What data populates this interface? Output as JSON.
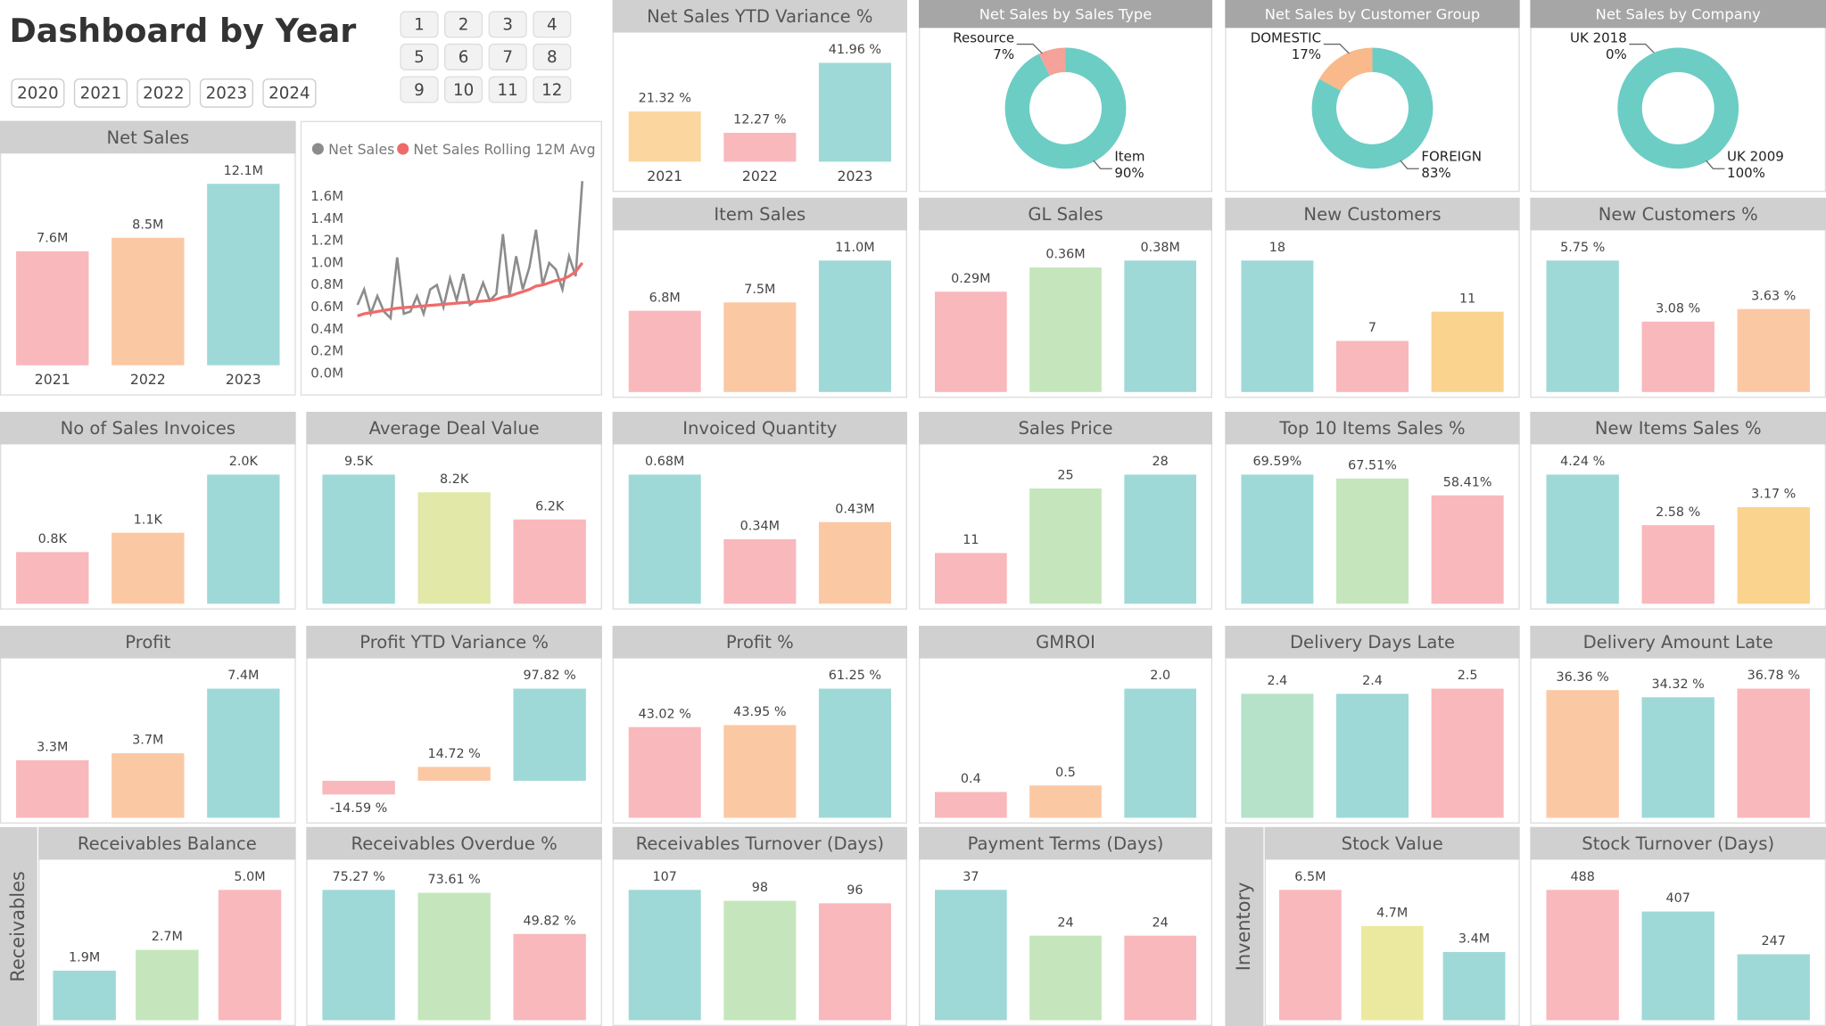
{
  "header": {
    "title": "Dashboard by Year",
    "years": [
      "2020",
      "2021",
      "2022",
      "2023",
      "2024"
    ],
    "months": [
      1,
      2,
      3,
      4,
      5,
      6,
      7,
      8,
      9,
      10,
      11,
      12
    ],
    "side_labels": [
      "Receivables",
      "Inventory"
    ]
  },
  "chart_data": [
    {
      "type": "bar",
      "title": "Net Sales YTD Variance %",
      "categories": [
        "2021",
        "2022",
        "2023"
      ],
      "values": [
        21.32,
        12.27,
        41.96
      ],
      "value_labels": [
        "21.32 %",
        "12.27 %",
        "41.96 %"
      ],
      "colors": [
        "#fbd79f",
        "#f9b8bc",
        "#9ed9d8"
      ]
    },
    {
      "type": "donut",
      "title": "Net Sales by Sales Type",
      "categories": [
        "Resource",
        "Item"
      ],
      "values": [
        7,
        90
      ],
      "value_labels": [
        "7%",
        "90%"
      ],
      "colors": [
        "#f4a29a",
        "#6ccdc4"
      ]
    },
    {
      "type": "donut",
      "title": "Net Sales by Customer Group",
      "categories": [
        "DOMESTIC",
        "FOREIGN"
      ],
      "values": [
        17,
        83
      ],
      "value_labels": [
        "17%",
        "83%"
      ],
      "colors": [
        "#f9b98a",
        "#6ccdc4"
      ]
    },
    {
      "type": "donut",
      "title": "Net Sales by Company",
      "categories": [
        "UK 2018",
        "UK 2009"
      ],
      "values": [
        0,
        100
      ],
      "value_labels": [
        "0%",
        "100%"
      ],
      "colors": [
        "#f4a29a",
        "#6ccdc4"
      ]
    },
    {
      "type": "bar",
      "title": "Net Sales",
      "categories": [
        "2021",
        "2022",
        "2023"
      ],
      "values": [
        7600000,
        8500000,
        12100000
      ],
      "value_labels": [
        "7.6M",
        "8.5M",
        "12.1M"
      ],
      "colors": [
        "#f9b8bc",
        "#fbc8a4",
        "#9ed9d8"
      ]
    },
    {
      "type": "line",
      "series": [
        {
          "name": "Net Sales",
          "color": "#8c8c8c",
          "values": [
            620000,
            760000,
            540000,
            700000,
            560000,
            500000,
            1050000,
            540000,
            560000,
            700000,
            540000,
            760000,
            800000,
            600000,
            860000,
            660000,
            900000,
            620000,
            660000,
            820000,
            660000,
            720000,
            1260000,
            700000,
            1060000,
            760000,
            960000,
            1300000,
            800000,
            1000000,
            940000,
            760000,
            1060000,
            880000,
            1740000
          ]
        },
        {
          "name": "Net Sales Rolling 12M Avg",
          "color": "#ef6b6b",
          "values": [
            520000,
            540000,
            550000,
            560000,
            570000,
            580000,
            590000,
            595000,
            600000,
            605000,
            610000,
            615000,
            620000,
            625000,
            630000,
            635000,
            640000,
            645000,
            650000,
            655000,
            660000,
            670000,
            690000,
            700000,
            720000,
            740000,
            760000,
            790000,
            800000,
            820000,
            840000,
            850000,
            880000,
            920000,
            1000000
          ]
        }
      ],
      "ylim": [
        0,
        1800000
      ],
      "yticks": [
        {
          "value": 0,
          "label": "0.0M"
        },
        {
          "value": 200000,
          "label": "0.2M"
        },
        {
          "value": 400000,
          "label": "0.4M"
        },
        {
          "value": 600000,
          "label": "0.6M"
        },
        {
          "value": 800000,
          "label": "0.8M"
        },
        {
          "value": 1000000,
          "label": "1.0M"
        },
        {
          "value": 1200000,
          "label": "1.2M"
        },
        {
          "value": 1400000,
          "label": "1.4M"
        },
        {
          "value": 1600000,
          "label": "1.6M"
        }
      ]
    },
    {
      "type": "bar",
      "title": "Item Sales",
      "values": [
        6800000,
        7500000,
        11000000
      ],
      "value_labels": [
        "6.8M",
        "7.5M",
        "11.0M"
      ],
      "colors": [
        "#f9b8bc",
        "#fbc8a4",
        "#9ed9d8"
      ]
    },
    {
      "type": "bar",
      "title": "GL Sales",
      "values": [
        290000,
        360000,
        380000
      ],
      "value_labels": [
        "0.29M",
        "0.36M",
        "0.38M"
      ],
      "colors": [
        "#f9b8bc",
        "#c5e6bc",
        "#9ed9d8"
      ]
    },
    {
      "type": "bar",
      "title": "New Customers",
      "values": [
        18,
        7,
        11
      ],
      "colors": [
        "#9ed9d8",
        "#f9b8bc",
        "#fad38e"
      ]
    },
    {
      "type": "bar",
      "title": "New Customers %",
      "values": [
        5.75,
        3.08,
        3.63
      ],
      "value_labels": [
        "5.75 %",
        "3.08 %",
        "3.63 %"
      ],
      "colors": [
        "#9ed9d8",
        "#f9b8bc",
        "#fbc8a4"
      ]
    },
    {
      "type": "bar",
      "title": "No of Sales Invoices",
      "values": [
        800,
        1100,
        2000
      ],
      "value_labels": [
        "0.8K",
        "1.1K",
        "2.0K"
      ],
      "colors": [
        "#f9b8bc",
        "#fbc8a4",
        "#9ed9d8"
      ]
    },
    {
      "type": "bar",
      "title": "Average Deal Value",
      "values": [
        9500,
        8200,
        6200
      ],
      "value_labels": [
        "9.5K",
        "8.2K",
        "6.2K"
      ],
      "colors": [
        "#9ed9d8",
        "#e1e8a8",
        "#f9b8bc"
      ]
    },
    {
      "type": "bar",
      "title": "Invoiced Quantity",
      "values": [
        680000,
        340000,
        430000
      ],
      "value_labels": [
        "0.68M",
        "0.34M",
        "0.43M"
      ],
      "colors": [
        "#9ed9d8",
        "#f9b8bc",
        "#fbc8a4"
      ]
    },
    {
      "type": "bar",
      "title": "Sales Price",
      "values": [
        11,
        25,
        28
      ],
      "colors": [
        "#f9b8bc",
        "#c5e6bc",
        "#9ed9d8"
      ]
    },
    {
      "type": "bar",
      "title": "Top 10 Items Sales %",
      "values": [
        69.59,
        67.51,
        58.41
      ],
      "value_labels": [
        "69.59%",
        "67.51%",
        "58.41%"
      ],
      "colors": [
        "#9ed9d8",
        "#c5e6bc",
        "#f9b8bc"
      ]
    },
    {
      "type": "bar",
      "title": "New Items Sales %",
      "values": [
        4.24,
        2.58,
        3.17
      ],
      "value_labels": [
        "4.24 %",
        "2.58 %",
        "3.17 %"
      ],
      "colors": [
        "#9ed9d8",
        "#f9b8bc",
        "#fad38e"
      ]
    },
    {
      "type": "bar",
      "title": "Profit",
      "values": [
        3300000,
        3700000,
        7400000
      ],
      "value_labels": [
        "3.3M",
        "3.7M",
        "7.4M"
      ],
      "colors": [
        "#f9b8bc",
        "#fbc8a4",
        "#9ed9d8"
      ]
    },
    {
      "type": "bar",
      "title": "Profit YTD Variance %",
      "values": [
        -14.59,
        14.72,
        97.82
      ],
      "value_labels": [
        "-14.59 %",
        "14.72 %",
        "97.82 %"
      ],
      "colors": [
        "#f9b8bc",
        "#fbc8a4",
        "#9ed9d8"
      ]
    },
    {
      "type": "bar",
      "title": "Profit %",
      "values": [
        43.02,
        43.95,
        61.25
      ],
      "value_labels": [
        "43.02 %",
        "43.95 %",
        "61.25 %"
      ],
      "colors": [
        "#f9b8bc",
        "#fbc8a4",
        "#9ed9d8"
      ]
    },
    {
      "type": "bar",
      "title": "GMROI",
      "values": [
        0.4,
        0.5,
        2.0
      ],
      "value_labels": [
        "0.4",
        "0.5",
        "2.0"
      ],
      "colors": [
        "#f9b8bc",
        "#fbc8a4",
        "#9ed9d8"
      ]
    },
    {
      "type": "bar",
      "title": "Delivery Days Late",
      "values": [
        2.4,
        2.4,
        2.5
      ],
      "colors": [
        "#b5e2c8",
        "#9ed9d8",
        "#f9b8bc"
      ]
    },
    {
      "type": "bar",
      "title": "Delivery Amount Late",
      "values": [
        36.36,
        34.32,
        36.78
      ],
      "value_labels": [
        "36.36 %",
        "34.32 %",
        "36.78 %"
      ],
      "colors": [
        "#fbc8a4",
        "#9ed9d8",
        "#f9b8bc"
      ]
    },
    {
      "type": "bar",
      "title": "Receivables Balance",
      "values": [
        1900000,
        2700000,
        5000000
      ],
      "value_labels": [
        "1.9M",
        "2.7M",
        "5.0M"
      ],
      "colors": [
        "#9ed9d8",
        "#c5e6bc",
        "#f9b8bc"
      ]
    },
    {
      "type": "bar",
      "title": "Receivables Overdue %",
      "values": [
        75.27,
        73.61,
        49.82
      ],
      "value_labels": [
        "75.27 %",
        "73.61 %",
        "49.82 %"
      ],
      "colors": [
        "#9ed9d8",
        "#c5e6bc",
        "#f9b8bc"
      ]
    },
    {
      "type": "bar",
      "title": "Receivables Turnover (Days)",
      "values": [
        107,
        98,
        96
      ],
      "colors": [
        "#9ed9d8",
        "#c5e6bc",
        "#f9b8bc"
      ]
    },
    {
      "type": "bar",
      "title": "Payment Terms (Days)",
      "values": [
        37,
        24,
        24
      ],
      "colors": [
        "#9ed9d8",
        "#c5e6bc",
        "#f9b8bc"
      ]
    },
    {
      "type": "bar",
      "title": "Stock Value",
      "values": [
        6500000,
        4700000,
        3400000
      ],
      "value_labels": [
        "6.5M",
        "4.7M",
        "3.4M"
      ],
      "colors": [
        "#f9b8bc",
        "#ebe9a0",
        "#9ed9d8"
      ]
    },
    {
      "type": "bar",
      "title": "Stock Turnover (Days)",
      "values": [
        488,
        407,
        247
      ],
      "colors": [
        "#f9b8bc",
        "#9ed9d8",
        "#9ed9d8"
      ]
    }
  ]
}
